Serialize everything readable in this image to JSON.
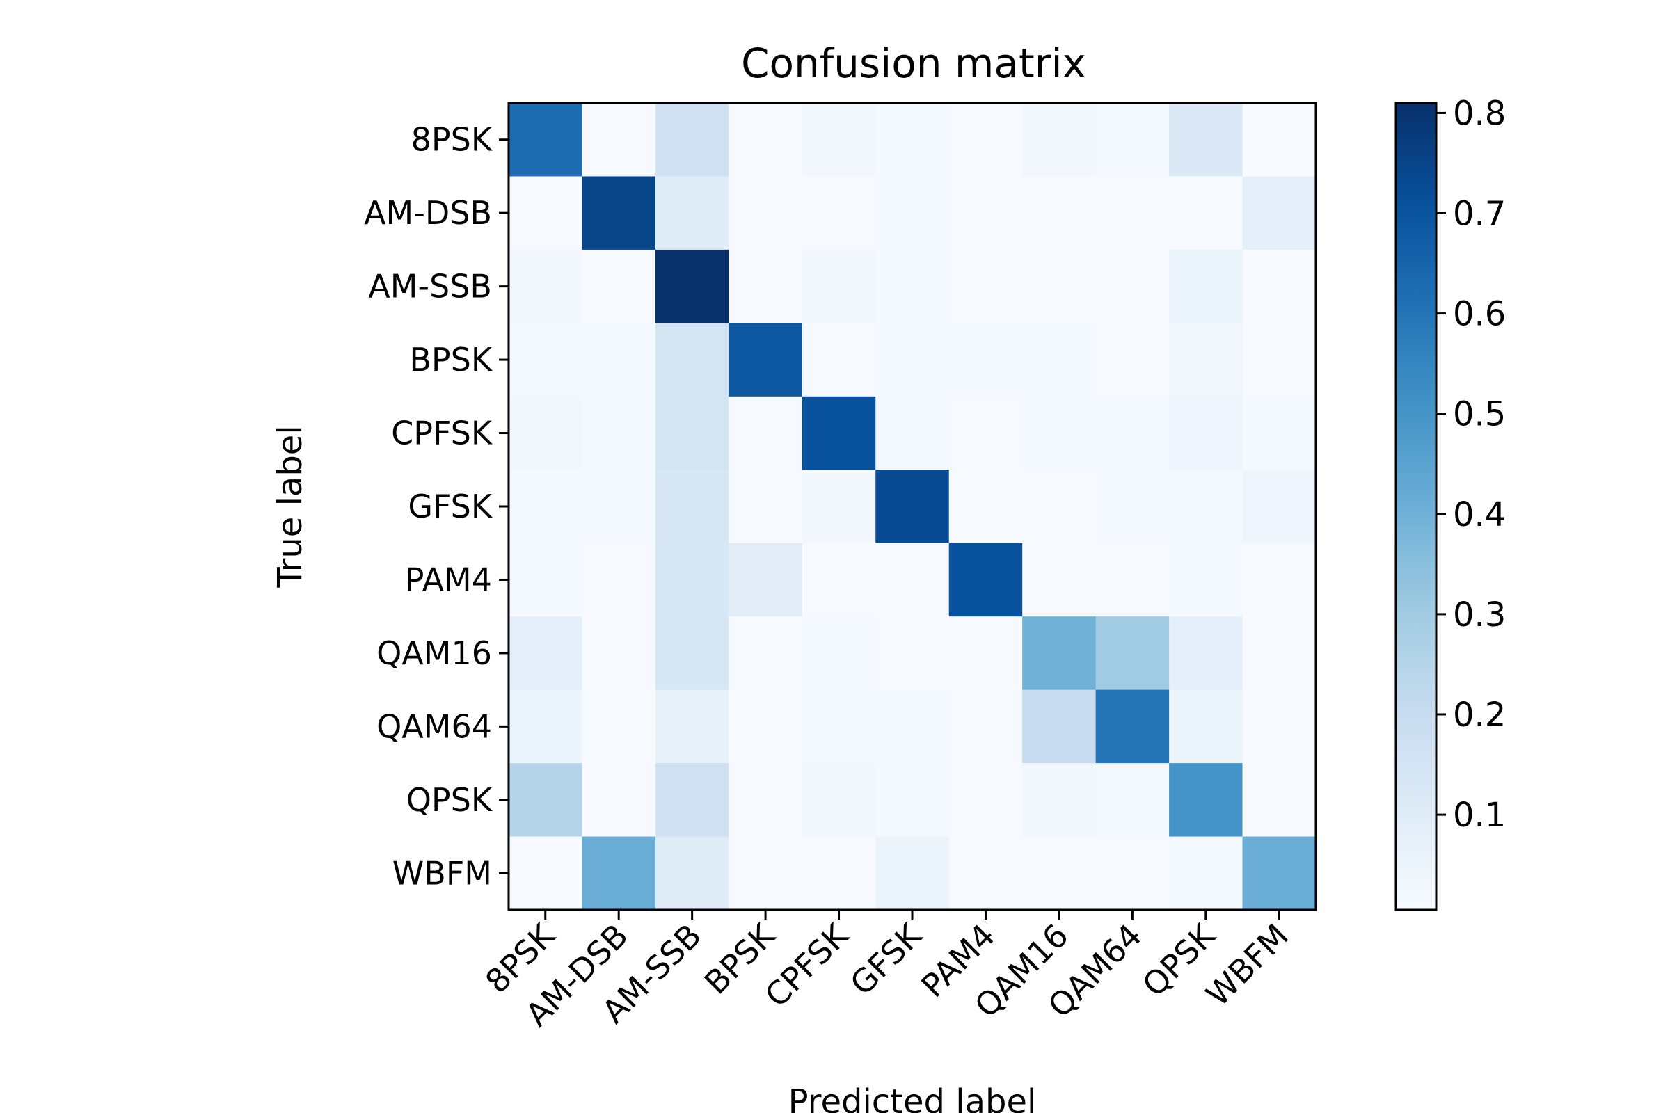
{
  "chart_data": {
    "type": "heatmap",
    "title": "Confusion matrix",
    "xlabel": "Predicted label",
    "ylabel": "True label",
    "x_categories": [
      "8PSK",
      "AM-DSB",
      "AM-SSB",
      "BPSK",
      "CPFSK",
      "GFSK",
      "PAM4",
      "QAM16",
      "QAM64",
      "QPSK",
      "WBFM"
    ],
    "y_categories": [
      "8PSK",
      "AM-DSB",
      "AM-SSB",
      "BPSK",
      "CPFSK",
      "GFSK",
      "PAM4",
      "QAM16",
      "QAM64",
      "QPSK",
      "WBFM"
    ],
    "values": [
      [
        0.62,
        0.01,
        0.17,
        0.01,
        0.03,
        0.02,
        0.01,
        0.03,
        0.02,
        0.12,
        0.01
      ],
      [
        0.01,
        0.75,
        0.1,
        0.01,
        0.01,
        0.02,
        0.01,
        0.01,
        0.01,
        0.01,
        0.08
      ],
      [
        0.03,
        0.01,
        0.81,
        0.01,
        0.03,
        0.02,
        0.01,
        0.01,
        0.01,
        0.05,
        0.01
      ],
      [
        0.02,
        0.02,
        0.15,
        0.69,
        0.01,
        0.02,
        0.02,
        0.02,
        0.01,
        0.03,
        0.01
      ],
      [
        0.03,
        0.02,
        0.15,
        0.01,
        0.71,
        0.02,
        0.01,
        0.02,
        0.02,
        0.04,
        0.02
      ],
      [
        0.02,
        0.02,
        0.13,
        0.01,
        0.03,
        0.73,
        0.01,
        0.01,
        0.02,
        0.02,
        0.04
      ],
      [
        0.02,
        0.01,
        0.13,
        0.09,
        0.01,
        0.01,
        0.71,
        0.01,
        0.01,
        0.02,
        0.01
      ],
      [
        0.08,
        0.01,
        0.13,
        0.01,
        0.02,
        0.01,
        0.01,
        0.4,
        0.3,
        0.08,
        0.01
      ],
      [
        0.05,
        0.01,
        0.07,
        0.01,
        0.02,
        0.02,
        0.01,
        0.2,
        0.6,
        0.05,
        0.01
      ],
      [
        0.25,
        0.01,
        0.17,
        0.01,
        0.03,
        0.02,
        0.01,
        0.03,
        0.02,
        0.5,
        0.01
      ],
      [
        0.01,
        0.41,
        0.1,
        0.01,
        0.01,
        0.05,
        0.01,
        0.01,
        0.01,
        0.02,
        0.41
      ]
    ],
    "colormap": "Blues",
    "colorbar": {
      "vmin": 0.005,
      "vmax": 0.81,
      "ticks": [
        0.1,
        0.2,
        0.3,
        0.4,
        0.5,
        0.6,
        0.7,
        0.8
      ],
      "tick_labels": [
        "0.1",
        "0.2",
        "0.3",
        "0.4",
        "0.5",
        "0.6",
        "0.7",
        "0.8"
      ],
      "position": "right"
    },
    "x_tick_rotation": 45,
    "grid": false
  }
}
